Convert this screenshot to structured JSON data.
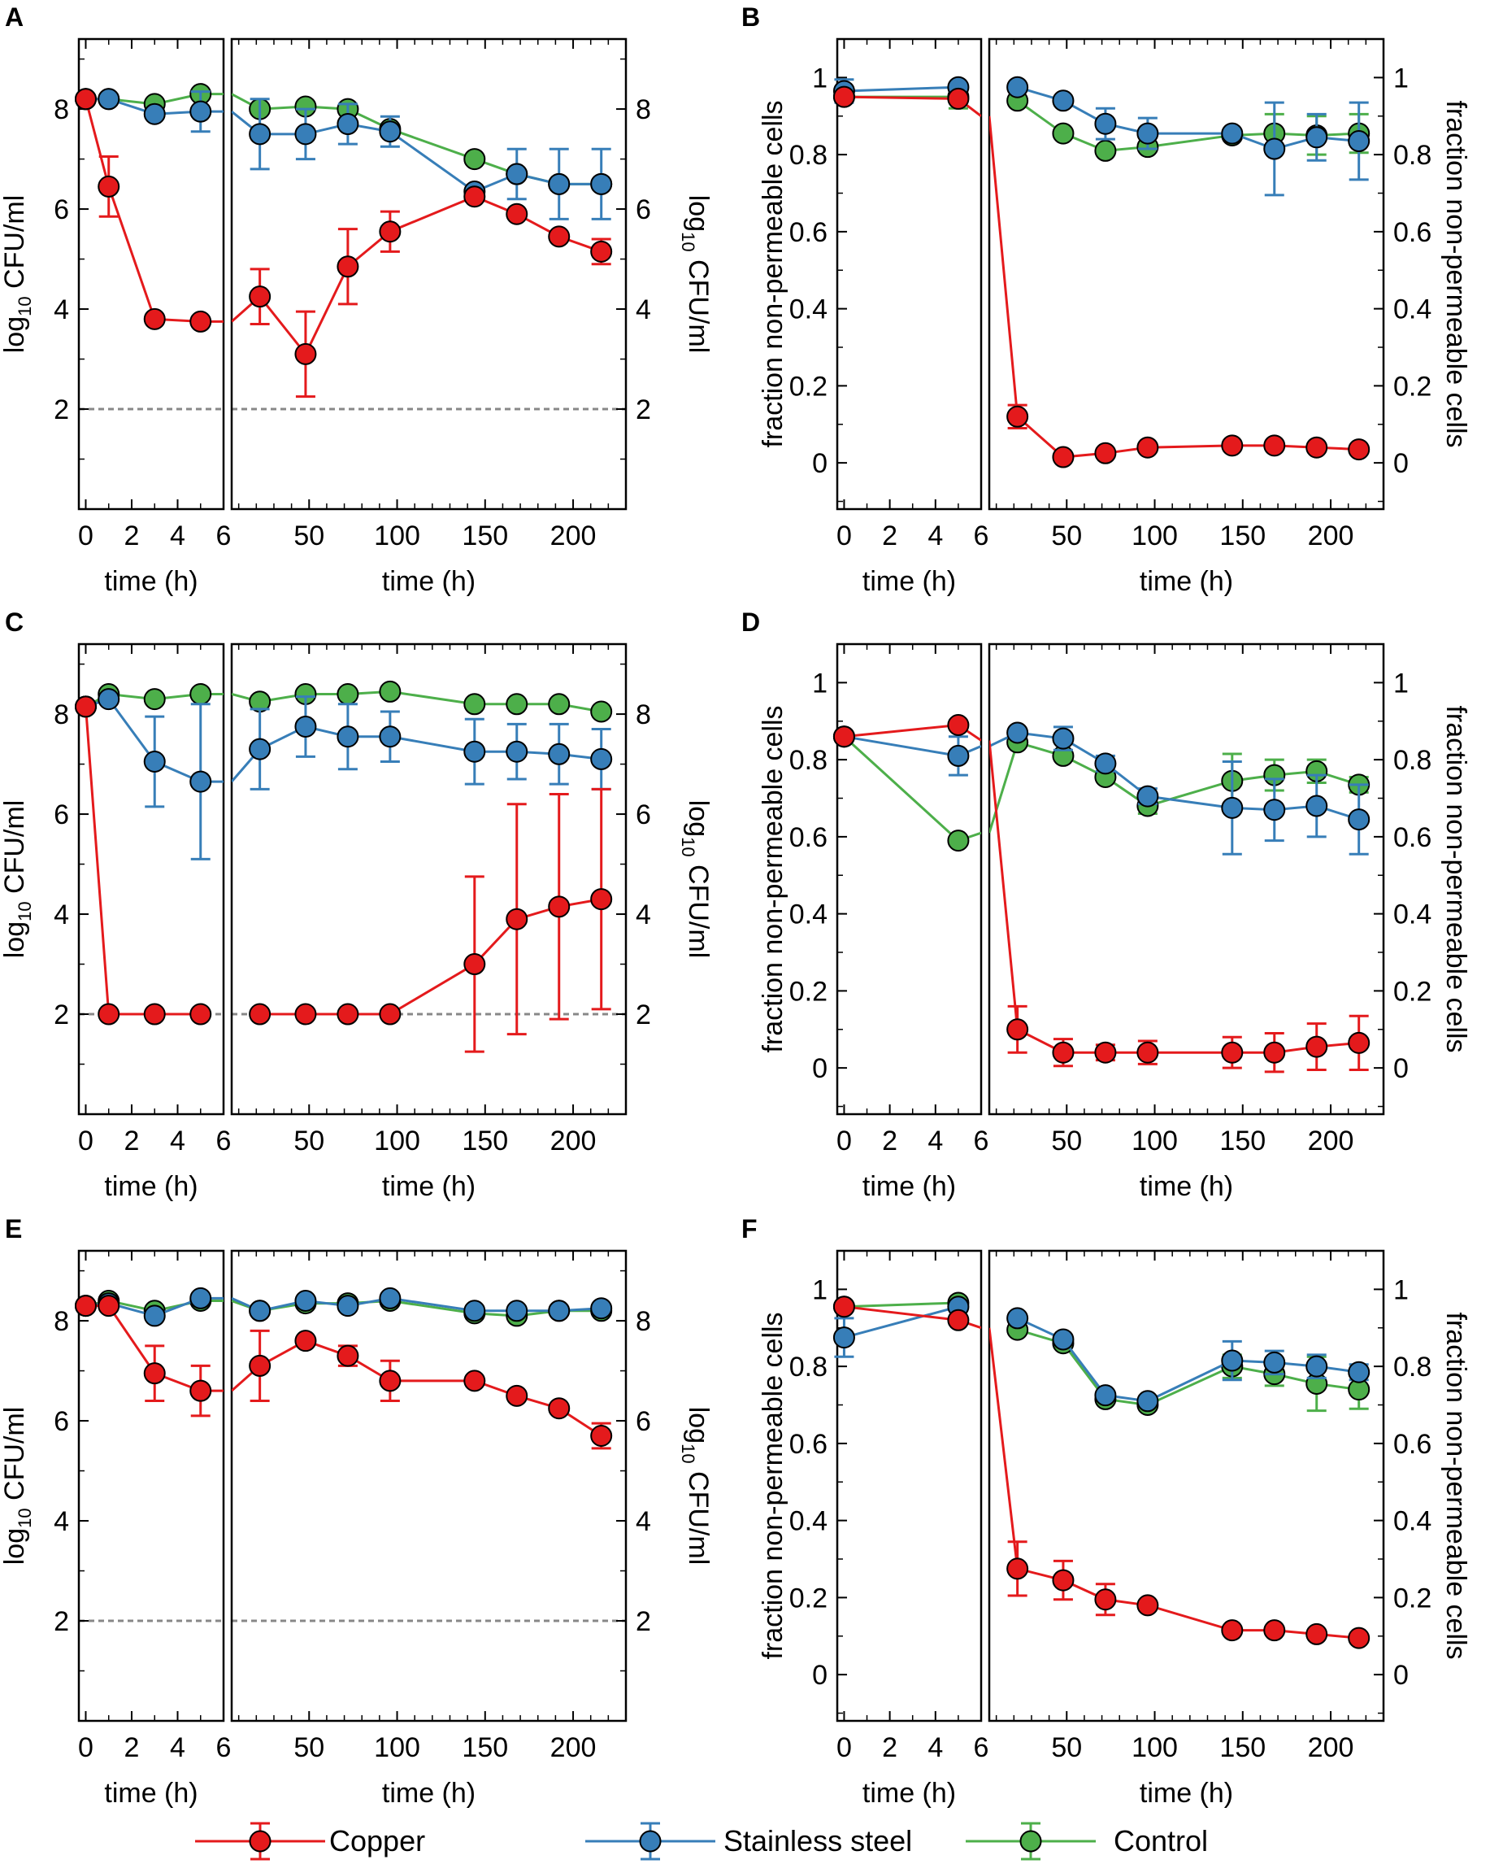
{
  "figure": {
    "legend": [
      {
        "key": "copper",
        "name": "Copper",
        "color": "#e41a1c"
      },
      {
        "key": "steel",
        "name": "Stainless steel",
        "color": "#377eb8"
      },
      {
        "key": "control",
        "name": "Control",
        "color": "#4daf4a"
      }
    ],
    "line_color_gray": "#888888"
  },
  "chart_data": [
    {
      "panel": "A",
      "type": "line",
      "ylabel_left": "log10 CFU/ml",
      "ylabel_right": "log10 CFU/ml",
      "xlabel": "time (h)",
      "xlim_short": [
        -0.3,
        6
      ],
      "xlim_long": [
        6,
        230
      ],
      "xticks_short": [
        0,
        2,
        4,
        6
      ],
      "xticks_long": [
        50,
        100,
        150,
        200
      ],
      "ylim": [
        0,
        9.4
      ],
      "yticks": [
        2,
        4,
        6,
        8
      ],
      "ytick_labels": [
        "2",
        "4",
        "6",
        "8"
      ],
      "detection_limit": 2,
      "series": [
        {
          "key": "control",
          "name": "Control",
          "x": [
            0,
            1,
            3,
            5,
            6,
            22,
            48,
            72,
            96,
            144,
            168,
            192,
            216
          ],
          "y": [
            8.2,
            8.2,
            8.1,
            8.3,
            8.3,
            8.0,
            8.05,
            8.0,
            7.6,
            7.0,
            6.7,
            6.5,
            6.5
          ],
          "err": [
            0,
            0,
            0,
            0,
            0,
            0,
            0,
            0,
            0,
            0,
            0,
            0,
            0
          ]
        },
        {
          "key": "steel",
          "name": "Stainless steel",
          "x": [
            0,
            1,
            3,
            5,
            6,
            22,
            48,
            72,
            96,
            144,
            168,
            192,
            216
          ],
          "y": [
            8.2,
            8.2,
            7.9,
            7.95,
            7.95,
            7.5,
            7.5,
            7.7,
            7.55,
            6.35,
            6.7,
            6.5,
            6.5
          ],
          "err": [
            0,
            0,
            0,
            0.4,
            0,
            0.7,
            0.5,
            0.4,
            0.3,
            0,
            0.5,
            0.7,
            0.7
          ]
        },
        {
          "key": "copper",
          "name": "Copper",
          "x": [
            0,
            1,
            3,
            5,
            6,
            22,
            48,
            72,
            96,
            144,
            168,
            192,
            216
          ],
          "y": [
            8.2,
            6.45,
            3.8,
            3.75,
            3.75,
            4.25,
            3.1,
            4.85,
            5.55,
            6.25,
            5.9,
            5.45,
            5.15
          ],
          "err": [
            0,
            0.6,
            0,
            0,
            0,
            0.55,
            0.85,
            0.75,
            0.4,
            0,
            0,
            0,
            0.25
          ]
        }
      ]
    },
    {
      "panel": "B",
      "type": "line",
      "ylabel_left": "fraction non-permeable cells",
      "ylabel_right": "fraction non-permeable cells",
      "xlabel": "time (h)",
      "xlim_short": [
        -0.3,
        6
      ],
      "xlim_long": [
        6,
        230
      ],
      "xticks_short": [
        0,
        2,
        4,
        6
      ],
      "xticks_long": [
        50,
        100,
        150,
        200
      ],
      "ylim": [
        -0.12,
        1.1
      ],
      "yticks": [
        0,
        0.2,
        0.4,
        0.6,
        0.8,
        1
      ],
      "ytick_labels": [
        "0",
        "0.2",
        "0.4",
        "0.6",
        "0.8",
        "1"
      ],
      "series": [
        {
          "key": "control",
          "name": "Control",
          "x": [
            0,
            5,
            22,
            48,
            72,
            96,
            144,
            168,
            192,
            216
          ],
          "y": [
            0.95,
            0.95,
            0.94,
            0.855,
            0.81,
            0.82,
            0.85,
            0.855,
            0.85,
            0.855
          ],
          "err": [
            0,
            0.03,
            0,
            0,
            0,
            0,
            0,
            0.05,
            0.05,
            0.05
          ]
        },
        {
          "key": "steel",
          "name": "Stainless steel",
          "x": [
            0,
            5,
            22,
            48,
            72,
            96,
            144,
            168,
            192,
            216
          ],
          "y": [
            0.965,
            0.975,
            0.975,
            0.94,
            0.88,
            0.855,
            0.855,
            0.815,
            0.845,
            0.835
          ],
          "err": [
            0.03,
            0,
            0,
            0,
            0.04,
            0.04,
            0,
            0.12,
            0.06,
            0.1
          ]
        },
        {
          "key": "copper",
          "name": "Copper",
          "x": [
            0,
            5,
            6,
            22,
            48,
            72,
            96,
            144,
            168,
            192,
            216
          ],
          "y": [
            0.95,
            0.945,
            0.9,
            0.12,
            0.015,
            0.025,
            0.04,
            0.045,
            0.045,
            0.04,
            0.035
          ],
          "err": [
            0,
            0,
            0,
            0.03,
            0,
            0,
            0,
            0,
            0,
            0,
            0
          ]
        }
      ]
    },
    {
      "panel": "C",
      "type": "line",
      "ylabel_left": "log10 CFU/ml",
      "ylabel_right": "log10 CFU/ml",
      "xlabel": "time (h)",
      "xlim_short": [
        -0.3,
        6
      ],
      "xlim_long": [
        6,
        230
      ],
      "xticks_short": [
        0,
        2,
        4,
        6
      ],
      "xticks_long": [
        50,
        100,
        150,
        200
      ],
      "ylim": [
        0,
        9.4
      ],
      "yticks": [
        2,
        4,
        6,
        8
      ],
      "ytick_labels": [
        "2",
        "4",
        "6",
        "8"
      ],
      "detection_limit": 2,
      "series": [
        {
          "key": "control",
          "name": "Control",
          "x": [
            0,
            1,
            3,
            5,
            6,
            22,
            48,
            72,
            96,
            144,
            168,
            192,
            216
          ],
          "y": [
            8.15,
            8.4,
            8.3,
            8.4,
            8.4,
            8.25,
            8.4,
            8.4,
            8.45,
            8.2,
            8.2,
            8.2,
            8.05
          ],
          "err": [
            0,
            0,
            0,
            0,
            0,
            0,
            0,
            0,
            0,
            0,
            0,
            0,
            0
          ]
        },
        {
          "key": "steel",
          "name": "Stainless steel",
          "x": [
            0,
            1,
            3,
            5,
            6,
            22,
            48,
            72,
            96,
            144,
            168,
            192,
            216
          ],
          "y": [
            8.15,
            8.3,
            7.05,
            6.65,
            6.65,
            7.3,
            7.75,
            7.55,
            7.55,
            7.25,
            7.25,
            7.2,
            7.1
          ],
          "err": [
            0,
            0,
            0.9,
            1.55,
            0,
            0.8,
            0.6,
            0.65,
            0.5,
            0.65,
            0.55,
            0.6,
            0.6
          ]
        },
        {
          "key": "copper",
          "name": "Copper",
          "x": [
            0,
            1,
            3,
            5,
            22,
            48,
            72,
            96,
            144,
            168,
            192,
            216
          ],
          "y": [
            8.15,
            2.0,
            2.0,
            2.0,
            2.0,
            2.0,
            2.0,
            2.0,
            3.0,
            3.9,
            4.15,
            4.3
          ],
          "err": [
            0,
            0,
            0,
            0,
            0,
            0,
            0,
            0,
            1.75,
            2.3,
            2.25,
            2.2
          ]
        }
      ]
    },
    {
      "panel": "D",
      "type": "line",
      "ylabel_left": "fraction non-permeable cells",
      "ylabel_right": "fraction non-permeable cells",
      "xlabel": "time (h)",
      "xlim_short": [
        -0.3,
        6
      ],
      "xlim_long": [
        6,
        230
      ],
      "xticks_short": [
        0,
        2,
        4,
        6
      ],
      "xticks_long": [
        50,
        100,
        150,
        200
      ],
      "ylim": [
        -0.12,
        1.1
      ],
      "yticks": [
        0,
        0.2,
        0.4,
        0.6,
        0.8,
        1
      ],
      "ytick_labels": [
        "0",
        "0.2",
        "0.4",
        "0.6",
        "0.8",
        "1"
      ],
      "series": [
        {
          "key": "control",
          "name": "Control",
          "x": [
            0,
            5,
            6,
            22,
            48,
            72,
            96,
            144,
            168,
            192,
            216
          ],
          "y": [
            0.86,
            0.59,
            0.61,
            0.845,
            0.81,
            0.755,
            0.68,
            0.745,
            0.76,
            0.77,
            0.735
          ],
          "err": [
            0,
            0,
            0,
            0,
            0,
            0,
            0.02,
            0.07,
            0.04,
            0.03,
            0.02
          ]
        },
        {
          "key": "steel",
          "name": "Stainless steel",
          "x": [
            0,
            5,
            6,
            22,
            48,
            72,
            96,
            144,
            168,
            192,
            216
          ],
          "y": [
            0.86,
            0.81,
            0.835,
            0.87,
            0.855,
            0.79,
            0.705,
            0.675,
            0.67,
            0.68,
            0.645
          ],
          "err": [
            0,
            0.05,
            0,
            0,
            0.03,
            0.02,
            0.02,
            0.12,
            0.08,
            0.08,
            0.09
          ]
        },
        {
          "key": "copper",
          "name": "Copper",
          "x": [
            0,
            5,
            6,
            22,
            48,
            72,
            96,
            144,
            168,
            192,
            216
          ],
          "y": [
            0.86,
            0.89,
            0.85,
            0.1,
            0.04,
            0.04,
            0.04,
            0.04,
            0.04,
            0.055,
            0.065
          ],
          "err": [
            0,
            0,
            0,
            0.06,
            0.035,
            0.02,
            0.03,
            0.04,
            0.05,
            0.06,
            0.07
          ]
        }
      ]
    },
    {
      "panel": "E",
      "type": "line",
      "ylabel_left": "log10 CFU/ml",
      "ylabel_right": "log10 CFU/ml",
      "xlabel": "time (h)",
      "xlim_short": [
        -0.3,
        6
      ],
      "xlim_long": [
        6,
        230
      ],
      "xticks_short": [
        0,
        2,
        4,
        6
      ],
      "xticks_long": [
        50,
        100,
        150,
        200
      ],
      "ylim": [
        0,
        9.4
      ],
      "yticks": [
        2,
        4,
        6,
        8
      ],
      "ytick_labels": [
        "2",
        "4",
        "6",
        "8"
      ],
      "detection_limit": 2,
      "series": [
        {
          "key": "control",
          "name": "Control",
          "x": [
            0,
            1,
            3,
            5,
            6,
            22,
            48,
            72,
            96,
            144,
            168,
            192,
            216
          ],
          "y": [
            8.3,
            8.4,
            8.2,
            8.4,
            8.4,
            8.2,
            8.35,
            8.35,
            8.4,
            8.15,
            8.1,
            8.2,
            8.2
          ],
          "err": [
            0,
            0,
            0,
            0,
            0,
            0,
            0,
            0,
            0,
            0,
            0,
            0,
            0
          ]
        },
        {
          "key": "steel",
          "name": "Stainless steel",
          "x": [
            0,
            1,
            3,
            5,
            6,
            22,
            48,
            72,
            96,
            144,
            168,
            192,
            216
          ],
          "y": [
            8.3,
            8.35,
            8.1,
            8.45,
            8.45,
            8.2,
            8.4,
            8.3,
            8.45,
            8.2,
            8.2,
            8.2,
            8.25
          ],
          "err": [
            0,
            0,
            0,
            0,
            0,
            0,
            0,
            0,
            0,
            0,
            0,
            0,
            0
          ]
        },
        {
          "key": "copper",
          "name": "Copper",
          "x": [
            0,
            1,
            3,
            5,
            6,
            22,
            48,
            72,
            96,
            144,
            168,
            192,
            216
          ],
          "y": [
            8.3,
            8.3,
            6.95,
            6.6,
            6.6,
            7.1,
            7.6,
            7.3,
            6.8,
            6.8,
            6.5,
            6.25,
            5.7
          ],
          "err": [
            0,
            0,
            0.55,
            0.5,
            0,
            0.7,
            0,
            0.2,
            0.4,
            0,
            0,
            0,
            0.25
          ]
        }
      ]
    },
    {
      "panel": "F",
      "type": "line",
      "ylabel_left": "fraction non-permeable cells",
      "ylabel_right": "fraction non-permeable cells",
      "xlabel": "time (h)",
      "xlim_short": [
        -0.3,
        6
      ],
      "xlim_long": [
        6,
        230
      ],
      "xticks_short": [
        0,
        2,
        4,
        6
      ],
      "xticks_long": [
        50,
        100,
        150,
        200
      ],
      "ylim": [
        -0.12,
        1.1
      ],
      "yticks": [
        0,
        0.2,
        0.4,
        0.6,
        0.8,
        1
      ],
      "ytick_labels": [
        "0",
        "0.2",
        "0.4",
        "0.6",
        "0.8",
        "1"
      ],
      "series": [
        {
          "key": "control",
          "name": "Control",
          "x": [
            0,
            5,
            22,
            48,
            72,
            96,
            144,
            168,
            192,
            216
          ],
          "y": [
            0.955,
            0.965,
            0.895,
            0.86,
            0.715,
            0.7,
            0.8,
            0.78,
            0.755,
            0.74
          ],
          "err": [
            0,
            0,
            0,
            0,
            0,
            0,
            0.03,
            0.03,
            0.07,
            0.05
          ]
        },
        {
          "key": "steel",
          "name": "Stainless steel",
          "x": [
            0,
            5,
            22,
            48,
            72,
            96,
            144,
            168,
            192,
            216
          ],
          "y": [
            0.875,
            0.955,
            0.925,
            0.87,
            0.725,
            0.71,
            0.815,
            0.81,
            0.8,
            0.785
          ],
          "err": [
            0.05,
            0,
            0,
            0,
            0,
            0,
            0.05,
            0.03,
            0.03,
            0.02
          ]
        },
        {
          "key": "copper",
          "name": "Copper",
          "x": [
            0,
            5,
            6,
            22,
            48,
            72,
            96,
            144,
            168,
            192,
            216
          ],
          "y": [
            0.955,
            0.92,
            0.9,
            0.275,
            0.245,
            0.195,
            0.18,
            0.115,
            0.115,
            0.105,
            0.095
          ],
          "err": [
            0,
            0,
            0,
            0.07,
            0.05,
            0.04,
            0,
            0,
            0,
            0,
            0
          ]
        }
      ]
    }
  ]
}
